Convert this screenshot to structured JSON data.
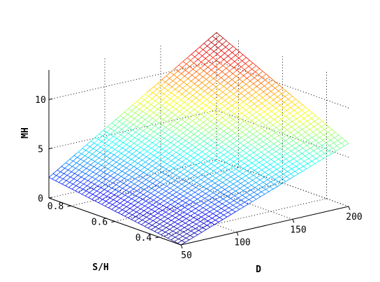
{
  "chart_data": {
    "type": "surface-mesh",
    "xlabel": "D",
    "ylabel": "S/H",
    "zlabel": "MH",
    "x_ticks": [
      "50",
      "100",
      "150",
      "200"
    ],
    "y_ticks": [
      "0.4",
      "0.6",
      "0.8"
    ],
    "z_ticks": [
      "0",
      "5",
      "10"
    ],
    "x_tick_values": [
      50,
      100,
      150,
      200
    ],
    "y_tick_values": [
      0.4,
      0.6,
      0.8
    ],
    "z_tick_values": [
      0,
      5,
      10
    ],
    "xlim": [
      50,
      200
    ],
    "ylim": [
      0.3,
      0.9
    ],
    "zlim": [
      0,
      13
    ],
    "corner_values": {
      "D_50_SH_0.9": 2.1,
      "D_50_SH_0.3": 0.0,
      "D_200_SH_0.9": 12.9,
      "D_200_SH_0.3": 6.4
    },
    "grid": true,
    "colormap": "jet",
    "mesh_density": {
      "x_lines": 40,
      "y_lines": 40
    }
  }
}
